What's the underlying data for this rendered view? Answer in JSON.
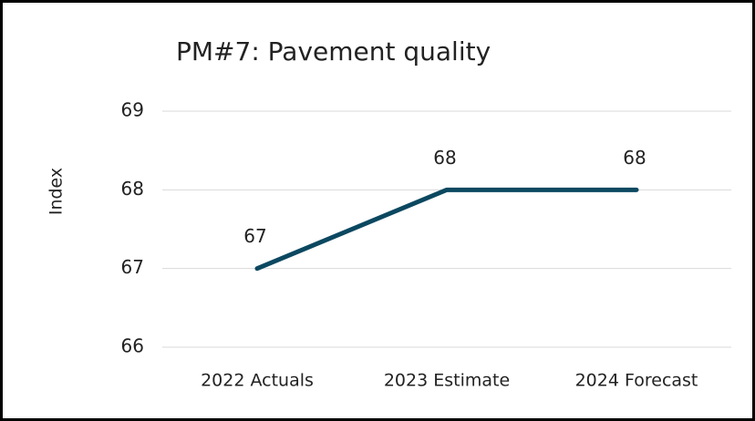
{
  "chart_data": {
    "type": "line",
    "title": "PM#7: Pavement quality",
    "y_label": "Index",
    "categories": [
      "2022 Actuals",
      "2023 Estimate",
      "2024 Forecast"
    ],
    "values": [
      67,
      68,
      68
    ],
    "color": "#0b4860",
    "ylim": [
      66,
      69
    ],
    "yticks": [
      66,
      67,
      68,
      69
    ],
    "grid": true,
    "data_labels": true
  }
}
